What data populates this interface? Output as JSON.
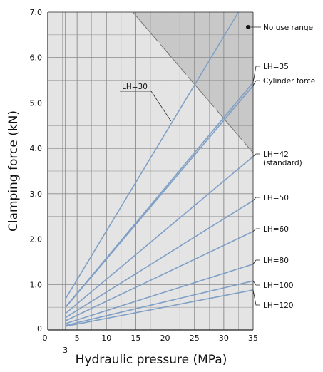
{
  "chart_data": {
    "type": "line",
    "title": "",
    "xlabel": "Hydraulic pressure (MPa)",
    "ylabel": "Clamping force (kN)",
    "xlim": [
      0,
      35
    ],
    "ylim": [
      0,
      7.0
    ],
    "x_ticks": [
      {
        "value": 0,
        "label": "0"
      },
      {
        "value": 3,
        "label": "3"
      },
      {
        "value": 5,
        "label": "5"
      },
      {
        "value": 10,
        "label": "10"
      },
      {
        "value": 15,
        "label": "15"
      },
      {
        "value": 20,
        "label": "20"
      },
      {
        "value": 25,
        "label": "25"
      },
      {
        "value": 30,
        "label": "30"
      },
      {
        "value": 35,
        "label": "35"
      }
    ],
    "y_ticks": [
      {
        "value": 0,
        "label": "0"
      },
      {
        "value": 1.0,
        "label": "1.0"
      },
      {
        "value": 2.0,
        "label": "2.0"
      },
      {
        "value": 3.0,
        "label": "3.0"
      },
      {
        "value": 4.0,
        "label": "4.0"
      },
      {
        "value": 5.0,
        "label": "5.0"
      },
      {
        "value": 6.0,
        "label": "6.0"
      },
      {
        "value": 7.0,
        "label": "7.0"
      }
    ],
    "grid": true,
    "no_use_range": {
      "label": "No use range",
      "boundary": [
        [
          14.5,
          7.0
        ],
        [
          35,
          3.9
        ]
      ]
    },
    "series": [
      {
        "name": "LH=30",
        "points": [
          [
            3,
            0.68
          ],
          [
            32.5,
            7.0
          ]
        ],
        "label_style": "leader",
        "label_anchor": [
          21,
          4.6
        ]
      },
      {
        "name": "LH=35",
        "points": [
          [
            3,
            0.5
          ],
          [
            35,
            5.45
          ]
        ]
      },
      {
        "name": "Cylinder force",
        "points": [
          [
            3,
            0.49
          ],
          [
            35,
            5.38
          ]
        ]
      },
      {
        "name": "LH=42",
        "sublabel": "(standard)",
        "points": [
          [
            3,
            0.36
          ],
          [
            35,
            3.82
          ]
        ]
      },
      {
        "name": "LH=50",
        "points": [
          [
            3,
            0.27
          ],
          [
            35,
            2.85
          ]
        ]
      },
      {
        "name": "LH=60",
        "points": [
          [
            3,
            0.2
          ],
          [
            35,
            2.17
          ]
        ]
      },
      {
        "name": "LH=80",
        "points": [
          [
            3,
            0.14
          ],
          [
            35,
            1.45
          ]
        ]
      },
      {
        "name": "LH=100",
        "points": [
          [
            3,
            0.1
          ],
          [
            35,
            1.08
          ]
        ]
      },
      {
        "name": "LH=120",
        "points": [
          [
            3,
            0.08
          ],
          [
            35,
            0.88
          ]
        ]
      }
    ],
    "colors": {
      "plot_bg": "#e4e4e4",
      "no_use_fill": "#c8c8c8",
      "line": "#7f9fc6",
      "grid": "#8a8a8a",
      "axis": "#222222",
      "boundary": "#777777"
    }
  }
}
